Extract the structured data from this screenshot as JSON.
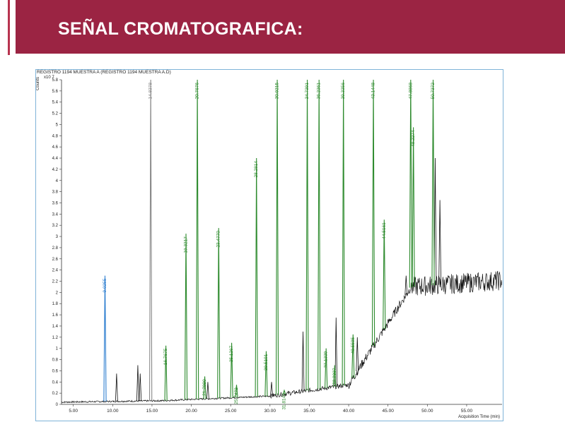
{
  "page": {
    "title": "SEÑAL CROMATOGRAFICA:"
  },
  "colors": {
    "banner": "#9b2443",
    "accent_line": "#b8344f",
    "frame": "#7fb3d8",
    "trace": "#111111",
    "peak_green": "#2e8b2e",
    "peak_blue": "#2f7fd0",
    "peak_gray": "#888888"
  },
  "chart_data": {
    "type": "line",
    "header": "REGISTRO 1194   MUESTRA A (REGISTRO 1194   MUESTRA A.D)",
    "ylabel": "Counts",
    "y_multiplier": "x10 7",
    "xlabel": "Acquisition Time (min)",
    "xlim": [
      3.5,
      59.5
    ],
    "ylim": [
      0,
      5.8
    ],
    "x_ticks": [
      "5.00",
      "10.00",
      "15.00",
      "20.00",
      "25.00",
      "30.00",
      "35.00",
      "40.00",
      "45.00",
      "50.00",
      "55.00"
    ],
    "x_tick_values": [
      5,
      10,
      15,
      20,
      25,
      30,
      35,
      40,
      45,
      50,
      55
    ],
    "y_ticks": [
      "0",
      "0.2",
      "0.4",
      "0.6",
      "0.8",
      "1",
      "1.2",
      "1.4",
      "1.6",
      "1.8",
      "2",
      "2.2",
      "2.4",
      "2.6",
      "2.8",
      "3",
      "3.2",
      "3.4",
      "3.6",
      "3.8",
      "4",
      "4.2",
      "4.4",
      "4.6",
      "4.8",
      "5",
      "5.2",
      "5.4",
      "5.6",
      "5.8"
    ],
    "y_tick_values": [
      0,
      0.2,
      0.4,
      0.6,
      0.8,
      1,
      1.2,
      1.4,
      1.6,
      1.8,
      2,
      2.2,
      2.4,
      2.6,
      2.8,
      3,
      3.2,
      3.4,
      3.6,
      3.8,
      4,
      4.2,
      4.4,
      4.6,
      4.8,
      5,
      5.2,
      5.4,
      5.6,
      5.8
    ],
    "peaks": [
      {
        "x": 9.0255,
        "y": 2.3,
        "label": "9.0255",
        "color": "blue"
      },
      {
        "x": 14.8378,
        "y": 5.8,
        "label": "14.8378",
        "color": "gray"
      },
      {
        "x": 16.7675,
        "y": 1.05,
        "label": "16.7675",
        "color": "green"
      },
      {
        "x": 19.3217,
        "y": 3.05,
        "label": "19.3217",
        "color": "green"
      },
      {
        "x": 20.7676,
        "y": 5.8,
        "label": "20.7676",
        "color": "green"
      },
      {
        "x": 21.708,
        "y": 0.5,
        "label": "21.7080",
        "color": "green"
      },
      {
        "x": 23.477,
        "y": 3.15,
        "label": "23.4770",
        "color": "green"
      },
      {
        "x": 25.1267,
        "y": 1.1,
        "label": "25.1267",
        "color": "green"
      },
      {
        "x": 25.7472,
        "y": 0.35,
        "label": "25.7472",
        "color": "green"
      },
      {
        "x": 28.2814,
        "y": 4.4,
        "label": "28.2814",
        "color": "green"
      },
      {
        "x": 29.5191,
        "y": 0.95,
        "label": "29.5191",
        "color": "green"
      },
      {
        "x": 30.9215,
        "y": 5.8,
        "label": "30.9215",
        "color": "green"
      },
      {
        "x": 31.8145,
        "y": 0.25,
        "label": "31.8145",
        "color": "green"
      },
      {
        "x": 34.7391,
        "y": 5.8,
        "label": "34.7391",
        "color": "green"
      },
      {
        "x": 36.2361,
        "y": 5.8,
        "label": "36.2361",
        "color": "green"
      },
      {
        "x": 37.1339,
        "y": 1.0,
        "label": "37.1339",
        "color": "green"
      },
      {
        "x": 38.2237,
        "y": 0.7,
        "label": "38.2237",
        "color": "green"
      },
      {
        "x": 39.3356,
        "y": 5.8,
        "label": "39.3356",
        "color": "green"
      },
      {
        "x": 40.5585,
        "y": 1.25,
        "label": "40.5585",
        "color": "green"
      },
      {
        "x": 43.1448,
        "y": 5.8,
        "label": "43.1448",
        "color": "green"
      },
      {
        "x": 44.5161,
        "y": 3.3,
        "label": "44.5161",
        "color": "green"
      },
      {
        "x": 47.8868,
        "y": 5.8,
        "label": "47.8868",
        "color": "green"
      },
      {
        "x": 48.2274,
        "y": 4.95,
        "label": "48.2274",
        "color": "green"
      },
      {
        "x": 50.7372,
        "y": 5.8,
        "label": "50.7372",
        "color": "green"
      }
    ],
    "extra_peaks": [
      {
        "x": 10.5,
        "y": 0.55
      },
      {
        "x": 13.2,
        "y": 0.7
      },
      {
        "x": 13.5,
        "y": 0.55
      },
      {
        "x": 22.1,
        "y": 0.4
      },
      {
        "x": 30.2,
        "y": 0.4
      },
      {
        "x": 34.2,
        "y": 1.3
      },
      {
        "x": 38.4,
        "y": 1.55
      },
      {
        "x": 41.1,
        "y": 1.2
      },
      {
        "x": 47.3,
        "y": 2.3
      },
      {
        "x": 51.0,
        "y": 4.4
      },
      {
        "x": 51.6,
        "y": 3.65
      }
    ]
  }
}
